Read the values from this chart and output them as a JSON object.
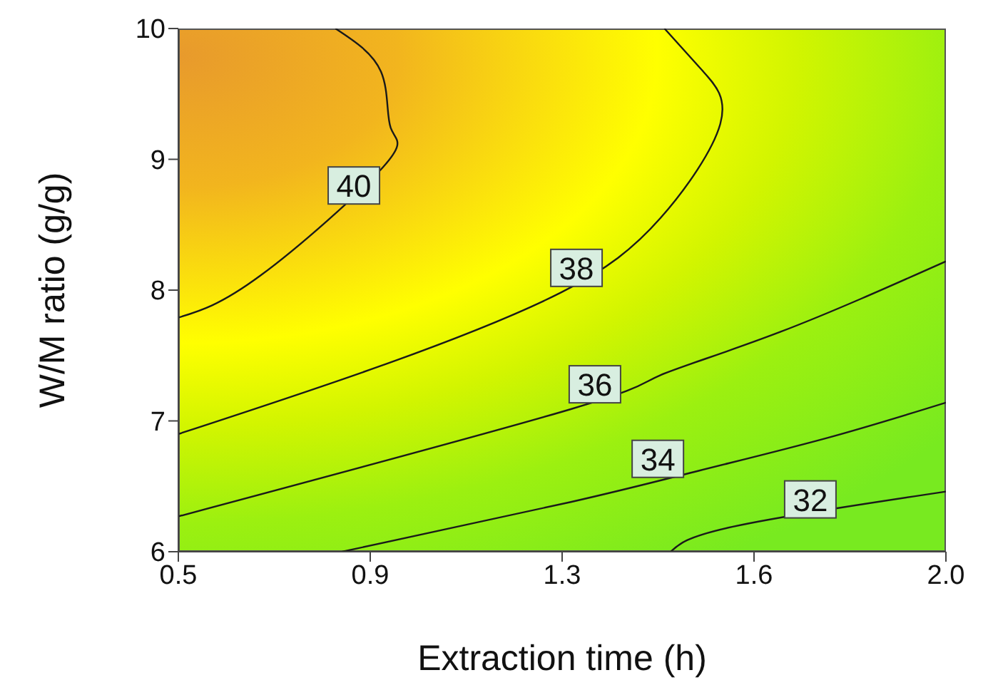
{
  "chart_data": {
    "type": "line",
    "xlabel": "Extraction time (h)",
    "ylabel": "W/M ratio (g/g)",
    "xlim": [
      0.5,
      2.0
    ],
    "xticks": [
      0.5,
      {
        "value": 0.875,
        "label": "0.9"
      },
      {
        "value": 1.25,
        "label": "1.3"
      },
      {
        "value": 1.625,
        "label": "1.6"
      },
      {
        "value": 2.0,
        "label": "2.0"
      }
    ],
    "ylim": [
      6,
      10
    ],
    "yticks": [
      6,
      7,
      8,
      9,
      10
    ],
    "grid": false,
    "legend": false,
    "marker": "none",
    "line_style": "solid",
    "series": [
      {
        "color": "#1a1a1a",
        "x": [
          0.5,
          0.66,
          0.9,
          0.915,
          0.896,
          0.807
        ],
        "values": [
          7.79,
          8.11,
          8.94,
          9.24,
          9.67,
          10
        ]
      },
      {
        "color": "#1a1a1a",
        "x": [
          0.5,
          0.895,
          1.247,
          1.442,
          1.559,
          1.526,
          1.45
        ],
        "values": [
          6.9,
          7.42,
          7.98,
          8.55,
          9.27,
          9.67,
          10
        ]
      },
      {
        "color": "#1a1a1a",
        "x": [
          0.5,
          1.267,
          1.442,
          1.676,
          2.0
        ],
        "values": [
          6.27,
          7.09,
          7.35,
          7.68,
          8.22
        ]
      },
      {
        "color": "#1a1a1a",
        "x": [
          0.82,
          1.267,
          1.518,
          1.768,
          2.0
        ],
        "values": [
          6,
          6.38,
          6.62,
          6.87,
          7.14
        ]
      },
      {
        "color": "#1a1a1a",
        "x": [
          1.462,
          1.582,
          2.0
        ],
        "values": [
          6,
          6.19,
          6.46
        ]
      }
    ],
    "annotations": [
      {
        "text": "40",
        "x": 0.843,
        "y": 8.8
      },
      {
        "text": "38",
        "x": 1.278,
        "y": 8.17
      },
      {
        "text": "36",
        "x": 1.314,
        "y": 7.28
      },
      {
        "text": "34",
        "x": 1.437,
        "y": 6.71
      },
      {
        "text": "32",
        "x": 1.735,
        "y": 6.4
      }
    ]
  }
}
